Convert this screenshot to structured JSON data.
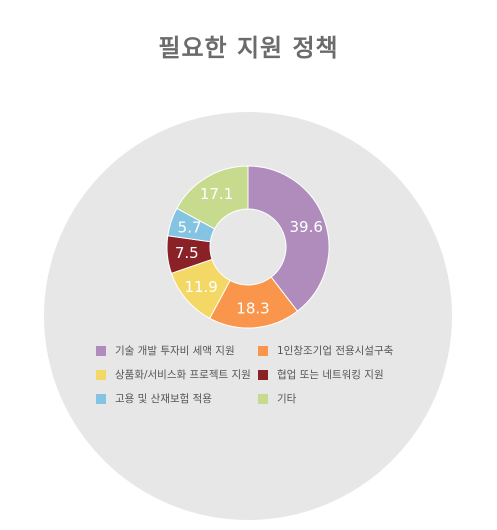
{
  "chart_data": {
    "type": "pie",
    "title": "필요한 지원 정책",
    "donut": true,
    "categories": [
      "기술 개발 투자비 세액 지원",
      "1인창조기업 전용시설구축",
      "상품화/서비스화 프로젝트 지원",
      "협업 또는 네트워킹 지원",
      "고용 및 산재보험 적용",
      "기타"
    ],
    "values": [
      39.6,
      18.3,
      11.9,
      7.5,
      5.7,
      17.1
    ],
    "colors": [
      "#b08cbc",
      "#f9964b",
      "#f3d866",
      "#8a2127",
      "#84c4e2",
      "#c6db8e"
    ],
    "label_colors": [
      "#ffffff",
      "#ffffff",
      "#ffffff",
      "#ffffff",
      "#ffffff",
      "#ffffff"
    ],
    "background_color": "#e8e7e8",
    "legend_position": "bottom"
  }
}
